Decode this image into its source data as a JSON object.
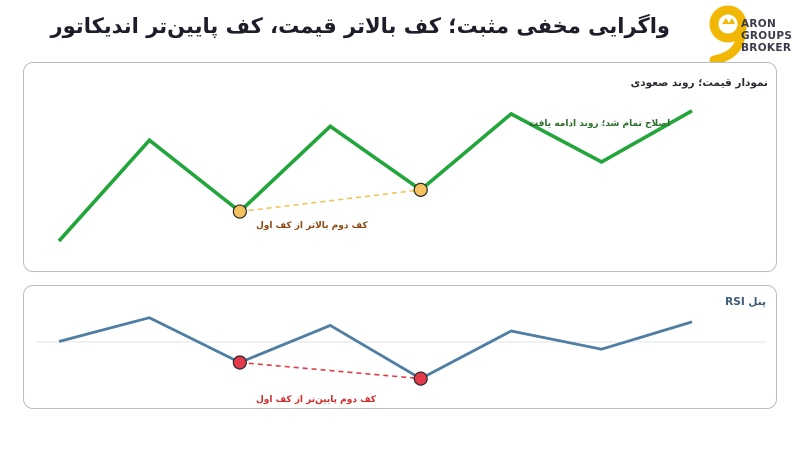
{
  "header": {
    "title": "واگرایی مخفی مثبت؛ کف بالاتر قیمت، کف پایین‌تر اندیکاتور"
  },
  "logo": {
    "numeral": "9",
    "lines": [
      "ARON",
      "GROUPS",
      "BROKER"
    ],
    "colors": {
      "accent": "#f2b705",
      "text": "#3b3b4a"
    }
  },
  "price_panel": {
    "label": "نمودار قیمت؛ روند صعودی",
    "note_correction": "اصلاح تمام شد؛ روند ادامه یافت",
    "note_low": "کف دوم بالاتر از کف اول",
    "colors": {
      "line": "#22a53a",
      "marker": "#f4c25e",
      "dash": "#f0c45a",
      "note_low": "#8a4a12",
      "note_correction": "#2a6e2a"
    }
  },
  "rsi_panel": {
    "label": "پنل RSI",
    "note_low": "کف دوم پایین‌تر از کف اول",
    "colors": {
      "line": "#4e7ea3",
      "marker": "#e23a4a",
      "dash": "#e03a48",
      "note_low": "#d42a2a",
      "label": "#3c5a7a"
    }
  },
  "chart_data": [
    {
      "type": "line",
      "series": [
        {
          "values": [
            0.0,
            0.65,
            0.19,
            0.74,
            0.33,
            0.82,
            0.51,
            0.84
          ]
        }
      ],
      "highlighted_points": [
        2,
        4
      ]
    },
    {
      "type": "line",
      "series": [
        {
          "values": [
            0.55,
            0.89,
            0.25,
            0.78,
            0.02,
            0.7,
            0.44,
            0.83
          ]
        }
      ],
      "highlighted_points": [
        2,
        4
      ]
    }
  ]
}
